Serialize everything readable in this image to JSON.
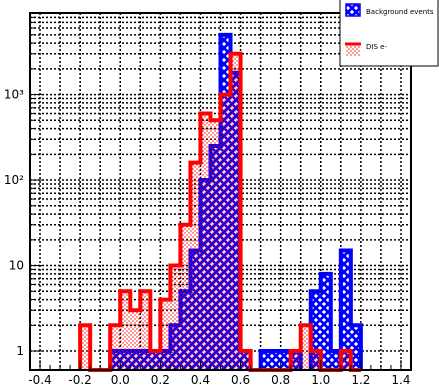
{
  "chart_data": {
    "type": "histogram",
    "title": "",
    "xlabel": "",
    "ylabel": "",
    "xlim": [
      -0.45,
      1.45
    ],
    "ylim": [
      0.6,
      9000
    ],
    "yscale": "log",
    "grid": true,
    "legend_position": "top-right",
    "bin_width": 0.05,
    "x_ticks": [
      {
        "value": -0.4,
        "label": "-0.4"
      },
      {
        "value": -0.2,
        "label": "-0.2"
      },
      {
        "value": 0.0,
        "label": "0.0"
      },
      {
        "value": 0.2,
        "label": "0.2"
      },
      {
        "value": 0.4,
        "label": "0.4"
      },
      {
        "value": 0.6,
        "label": "0.6"
      },
      {
        "value": 0.8,
        "label": "0.8"
      },
      {
        "value": 1.0,
        "label": "1.0"
      },
      {
        "value": 1.2,
        "label": "1.2"
      },
      {
        "value": 1.4,
        "label": "1.4"
      }
    ],
    "y_ticks": [
      {
        "value": 1,
        "label": "1"
      },
      {
        "value": 10,
        "label": "10"
      },
      {
        "value": 100,
        "label": "10²"
      },
      {
        "value": 1000,
        "label": "10³"
      }
    ],
    "series": [
      {
        "name": "Background events",
        "color": "#0000ff",
        "fill": "crosshatch",
        "bins": [
          {
            "x0": -0.05,
            "x1": 0.0,
            "value": 1
          },
          {
            "x0": 0.0,
            "x1": 0.05,
            "value": 1
          },
          {
            "x0": 0.05,
            "x1": 0.1,
            "value": 1
          },
          {
            "x0": 0.1,
            "x1": 0.15,
            "value": 1
          },
          {
            "x0": 0.15,
            "x1": 0.2,
            "value": 1
          },
          {
            "x0": 0.2,
            "x1": 0.25,
            "value": 1
          },
          {
            "x0": 0.25,
            "x1": 0.3,
            "value": 2
          },
          {
            "x0": 0.3,
            "x1": 0.35,
            "value": 5
          },
          {
            "x0": 0.35,
            "x1": 0.4,
            "value": 15
          },
          {
            "x0": 0.4,
            "x1": 0.45,
            "value": 100
          },
          {
            "x0": 0.45,
            "x1": 0.5,
            "value": 250
          },
          {
            "x0": 0.5,
            "x1": 0.55,
            "value": 5000
          },
          {
            "x0": 0.55,
            "x1": 0.6,
            "value": 1800
          },
          {
            "x0": 0.6,
            "x1": 0.65,
            "value": 1
          },
          {
            "x0": 0.7,
            "x1": 0.75,
            "value": 1
          },
          {
            "x0": 0.75,
            "x1": 0.8,
            "value": 1
          },
          {
            "x0": 0.8,
            "x1": 0.85,
            "value": 1
          },
          {
            "x0": 0.85,
            "x1": 0.9,
            "value": 1
          },
          {
            "x0": 0.95,
            "x1": 1.0,
            "value": 5
          },
          {
            "x0": 1.0,
            "x1": 1.05,
            "value": 8
          },
          {
            "x0": 1.05,
            "x1": 1.1,
            "value": 1
          },
          {
            "x0": 1.1,
            "x1": 1.15,
            "value": 15
          },
          {
            "x0": 1.15,
            "x1": 1.2,
            "value": 2
          }
        ]
      },
      {
        "name": "DIS e-",
        "color": "#ff0000",
        "fill": "dots",
        "bins": [
          {
            "x0": -0.2,
            "x1": -0.15,
            "value": 2
          },
          {
            "x0": -0.15,
            "x1": -0.1,
            "value": 0.6
          },
          {
            "x0": -0.1,
            "x1": -0.05,
            "value": 0.6
          },
          {
            "x0": -0.05,
            "x1": 0.0,
            "value": 2
          },
          {
            "x0": 0.0,
            "x1": 0.05,
            "value": 5
          },
          {
            "x0": 0.05,
            "x1": 0.1,
            "value": 3
          },
          {
            "x0": 0.1,
            "x1": 0.15,
            "value": 5
          },
          {
            "x0": 0.15,
            "x1": 0.2,
            "value": 1
          },
          {
            "x0": 0.2,
            "x1": 0.25,
            "value": 4
          },
          {
            "x0": 0.25,
            "x1": 0.3,
            "value": 10
          },
          {
            "x0": 0.3,
            "x1": 0.35,
            "value": 30
          },
          {
            "x0": 0.35,
            "x1": 0.4,
            "value": 160
          },
          {
            "x0": 0.4,
            "x1": 0.45,
            "value": 600
          },
          {
            "x0": 0.45,
            "x1": 0.5,
            "value": 500
          },
          {
            "x0": 0.5,
            "x1": 0.55,
            "value": 1000
          },
          {
            "x0": 0.55,
            "x1": 0.6,
            "value": 3000
          },
          {
            "x0": 0.6,
            "x1": 0.65,
            "value": 1
          },
          {
            "x0": 0.65,
            "x1": 0.7,
            "value": 0.6
          },
          {
            "x0": 0.7,
            "x1": 0.75,
            "value": 0.6
          },
          {
            "x0": 0.75,
            "x1": 0.8,
            "value": 0.6
          },
          {
            "x0": 0.8,
            "x1": 0.85,
            "value": 0.6
          },
          {
            "x0": 0.85,
            "x1": 0.9,
            "value": 1
          },
          {
            "x0": 0.9,
            "x1": 0.95,
            "value": 2
          },
          {
            "x0": 0.95,
            "x1": 1.0,
            "value": 1
          },
          {
            "x0": 1.0,
            "x1": 1.05,
            "value": 0.6
          },
          {
            "x0": 1.05,
            "x1": 1.1,
            "value": 0.6
          },
          {
            "x0": 1.1,
            "x1": 1.15,
            "value": 1
          },
          {
            "x0": 1.15,
            "x1": 1.2,
            "value": 0.6
          }
        ]
      }
    ]
  }
}
